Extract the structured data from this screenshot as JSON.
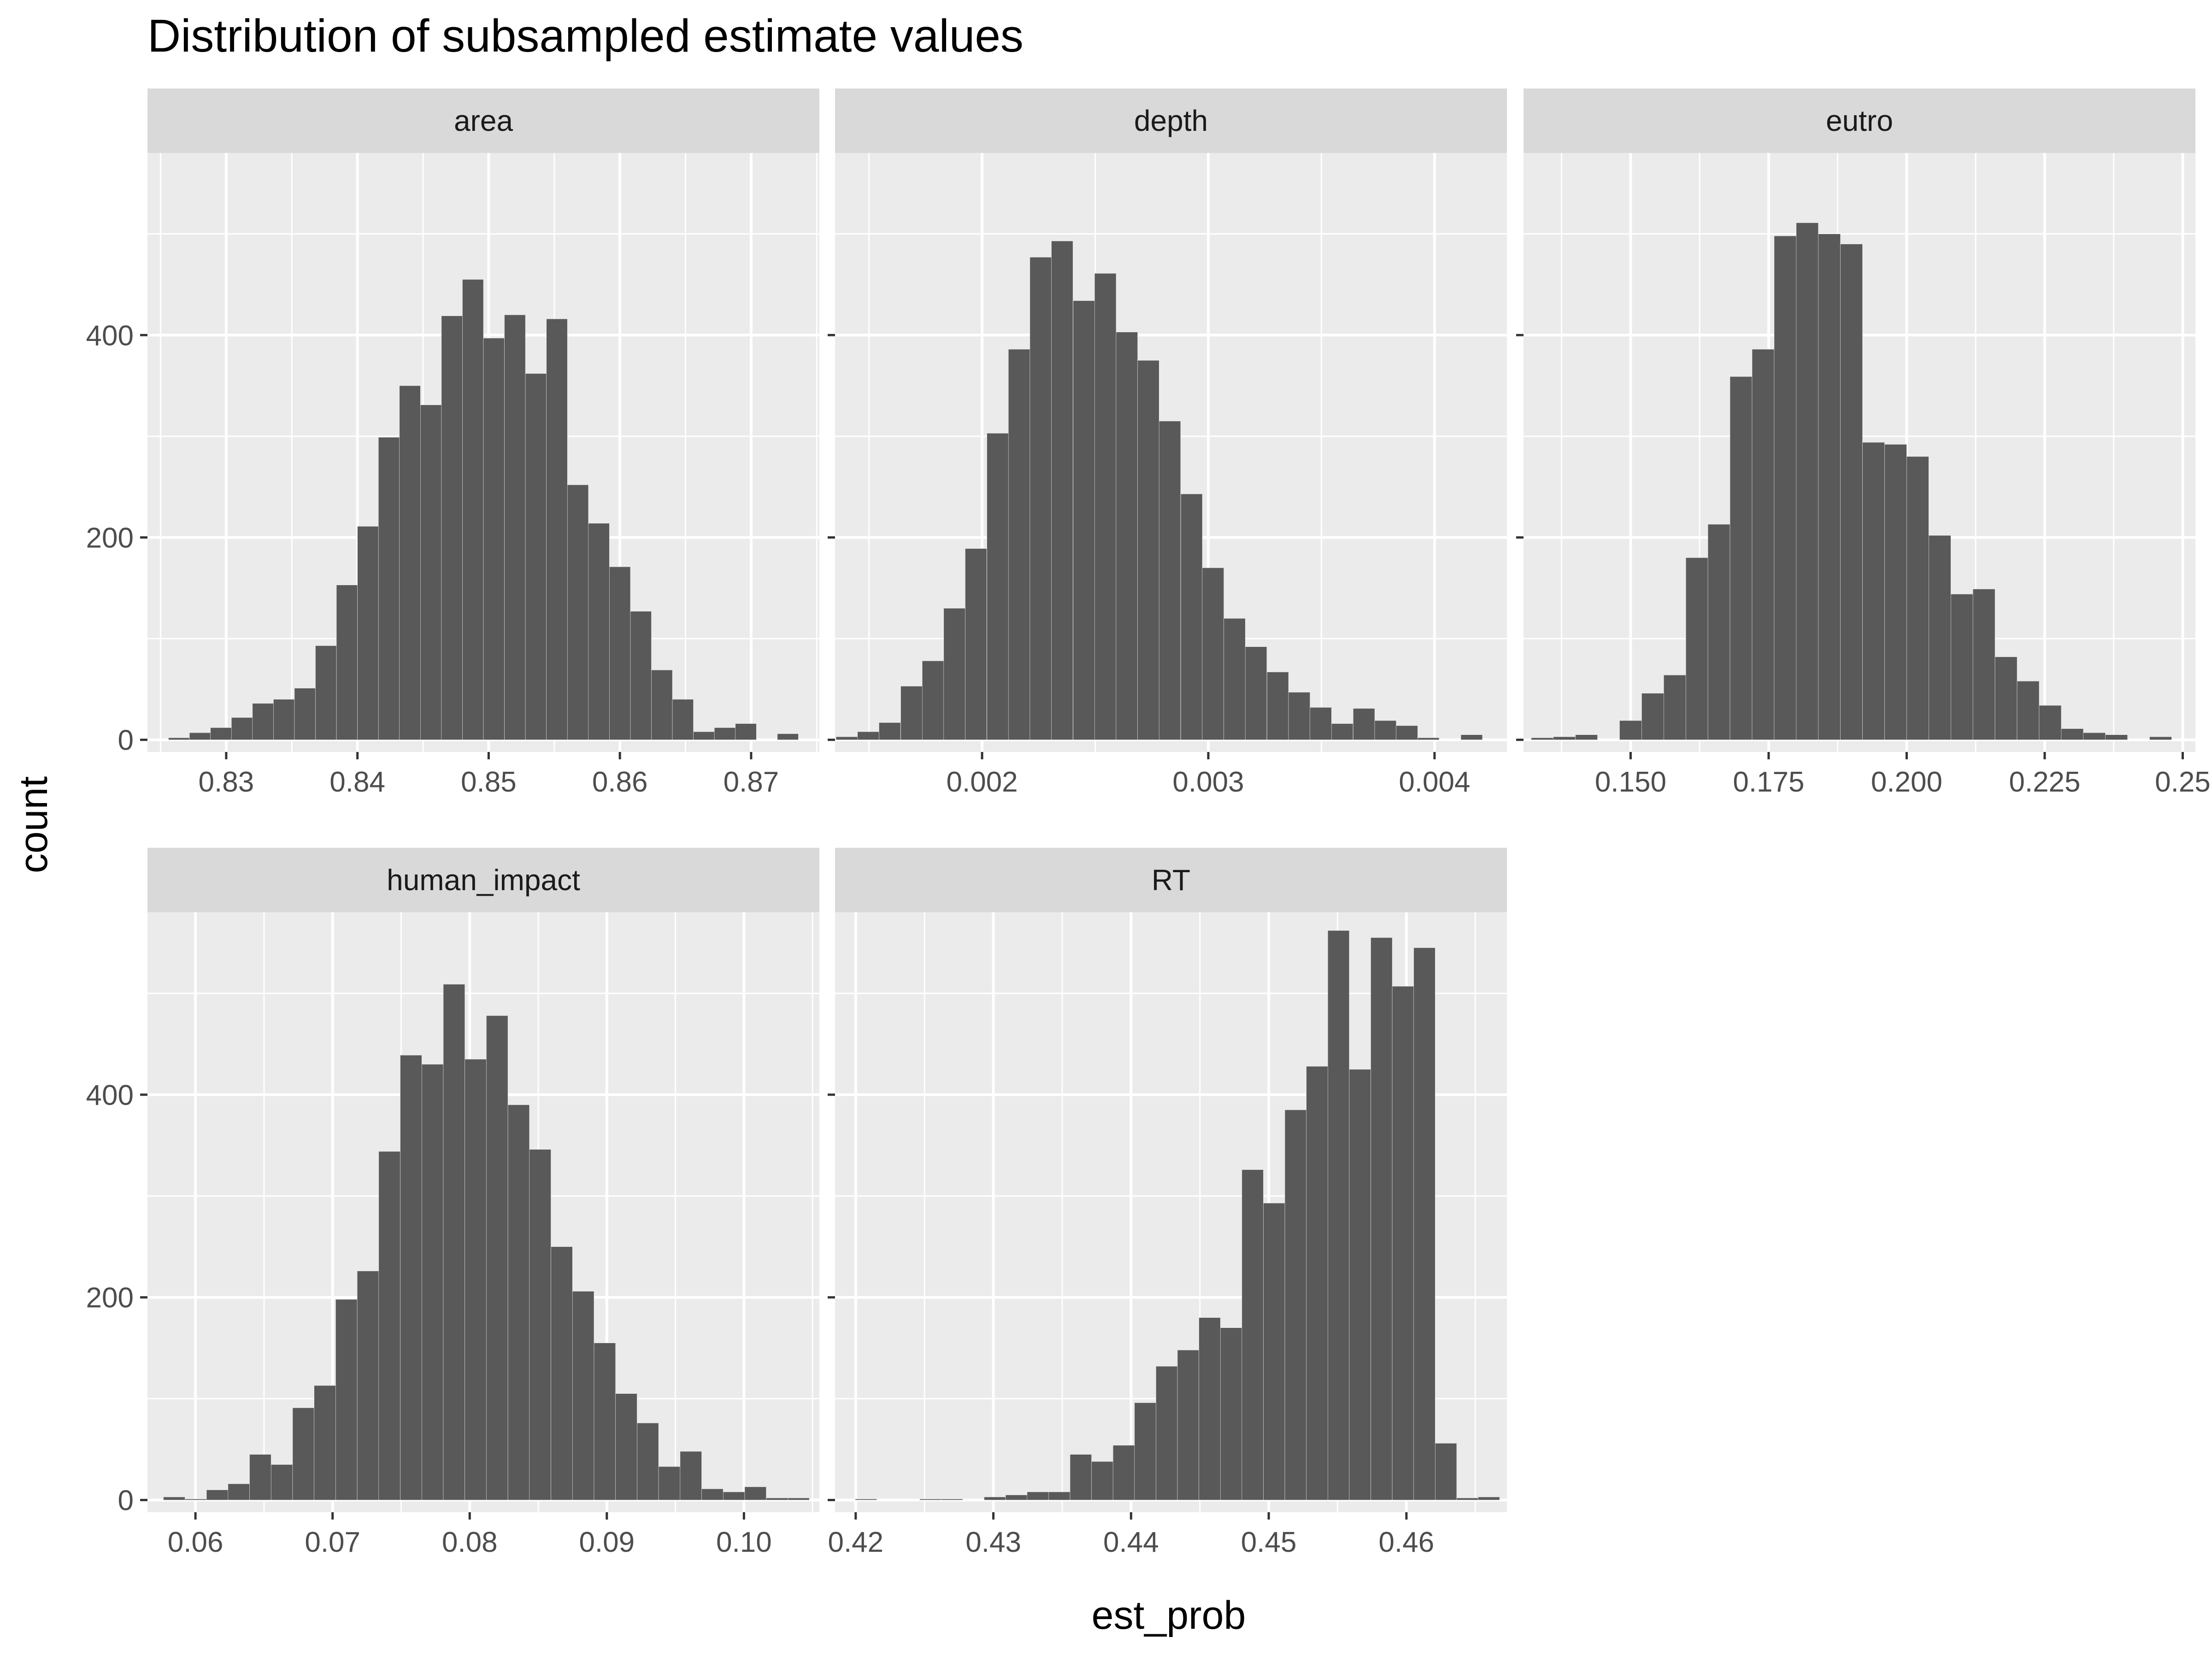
{
  "title": "Distribution of subsampled estimate values",
  "xlabel": "est_prob",
  "ylabel": "count",
  "colors": {
    "panel_bg": "#ebebeb",
    "strip_bg": "#d9d9d9",
    "grid": "#ffffff",
    "bar": "#595959",
    "text": "#000000",
    "tick_text": "#4d4d4d",
    "axis_tick": "#333333"
  },
  "y_axis": {
    "ylim": [
      -12,
      580
    ],
    "ticks": [
      0,
      200,
      400
    ],
    "tick_labels": [
      "0",
      "200",
      "400"
    ]
  },
  "chart_data": [
    {
      "type": "bar",
      "facet": "area",
      "xlim": [
        0.824,
        0.8752
      ],
      "x_ticks": [
        0.83,
        0.84,
        0.85,
        0.86,
        0.87
      ],
      "x_tick_labels": [
        "0.83",
        "0.84",
        "0.85",
        "0.86",
        "0.87"
      ],
      "bin_width": 0.0016,
      "bin_centers": [
        0.8264,
        0.828,
        0.8296,
        0.8312,
        0.8328,
        0.8344,
        0.836,
        0.8376,
        0.8392,
        0.8408,
        0.8424,
        0.844,
        0.8456,
        0.8472,
        0.8488,
        0.8504,
        0.852,
        0.8536,
        0.8552,
        0.8568,
        0.8584,
        0.86,
        0.8616,
        0.8632,
        0.8648,
        0.8664,
        0.868,
        0.8696,
        0.8712,
        0.8728
      ],
      "counts": [
        2,
        7,
        12,
        22,
        36,
        40,
        51,
        93,
        153,
        211,
        299,
        350,
        331,
        419,
        455,
        397,
        420,
        362,
        416,
        252,
        214,
        171,
        127,
        69,
        40,
        8,
        12,
        16,
        0,
        6
      ]
    },
    {
      "type": "bar",
      "facet": "depth",
      "xlim": [
        0.00135,
        0.00432
      ],
      "x_ticks": [
        0.002,
        0.003,
        0.004
      ],
      "x_tick_labels": [
        "0.002",
        "0.003",
        "0.004"
      ],
      "bin_width": 9.52e-05,
      "bin_centers": [
        0.001402,
        0.001497,
        0.001592,
        0.001688,
        0.001783,
        0.001878,
        0.001973,
        0.002069,
        0.002164,
        0.002259,
        0.002354,
        0.00245,
        0.002545,
        0.00264,
        0.002735,
        0.00283,
        0.002926,
        0.003021,
        0.003116,
        0.003211,
        0.003307,
        0.003402,
        0.003497,
        0.003592,
        0.003688,
        0.003783,
        0.003878,
        0.003973,
        0.004069,
        0.004164
      ],
      "counts": [
        3,
        8,
        17,
        53,
        78,
        130,
        189,
        303,
        386,
        477,
        493,
        434,
        461,
        403,
        375,
        315,
        243,
        170,
        120,
        92,
        67,
        47,
        32,
        16,
        31,
        19,
        14,
        2,
        0,
        5
      ]
    },
    {
      "type": "bar",
      "facet": "eutro",
      "xlim": [
        0.1306,
        0.2523
      ],
      "x_ticks": [
        0.15,
        0.175,
        0.2,
        0.225,
        0.25
      ],
      "x_tick_labels": [
        "0.150",
        "0.175",
        "0.200",
        "0.225",
        "0.25"
      ],
      "bin_width": 0.004,
      "bin_centers": [
        0.134,
        0.138,
        0.142,
        0.146,
        0.15,
        0.154,
        0.158,
        0.162,
        0.166,
        0.17,
        0.174,
        0.178,
        0.182,
        0.186,
        0.19,
        0.194,
        0.198,
        0.202,
        0.206,
        0.21,
        0.214,
        0.218,
        0.222,
        0.226,
        0.23,
        0.234,
        0.238,
        0.242,
        0.246
      ],
      "counts": [
        2,
        3,
        5,
        0,
        19,
        46,
        64,
        180,
        213,
        359,
        386,
        498,
        511,
        500,
        490,
        294,
        292,
        280,
        202,
        144,
        149,
        82,
        58,
        34,
        11,
        7,
        5,
        0,
        3
      ]
    },
    {
      "type": "bar",
      "facet": "human_impact",
      "xlim": [
        0.0565,
        0.1055
      ],
      "x_ticks": [
        0.06,
        0.07,
        0.08,
        0.09,
        0.1
      ],
      "x_tick_labels": [
        "0.06",
        "0.07",
        "0.08",
        "0.09",
        "0.10"
      ],
      "bin_width": 0.00157,
      "bin_centers": [
        0.05845,
        0.06002,
        0.06159,
        0.06316,
        0.06473,
        0.0663,
        0.06787,
        0.06944,
        0.07101,
        0.07258,
        0.07415,
        0.07572,
        0.07729,
        0.07886,
        0.08043,
        0.082,
        0.08357,
        0.08514,
        0.08671,
        0.08828,
        0.08985,
        0.09142,
        0.09299,
        0.09456,
        0.09613,
        0.0977,
        0.09927,
        0.10084,
        0.10241,
        0.10398
      ],
      "counts": [
        3,
        1,
        10,
        16,
        45,
        35,
        91,
        113,
        198,
        226,
        344,
        439,
        430,
        509,
        435,
        478,
        390,
        346,
        250,
        206,
        155,
        105,
        76,
        33,
        48,
        11,
        8,
        13,
        2,
        2
      ]
    },
    {
      "type": "bar",
      "facet": "RT",
      "xlim": [
        0.4185,
        0.4673
      ],
      "x_ticks": [
        0.42,
        0.43,
        0.44,
        0.45,
        0.46
      ],
      "x_tick_labels": [
        "0.42",
        "0.43",
        "0.44",
        "0.45",
        "0.46"
      ],
      "bin_width": 0.00156,
      "bin_centers": [
        0.42075,
        0.42231,
        0.42387,
        0.42543,
        0.42699,
        0.42855,
        0.43011,
        0.43167,
        0.43323,
        0.43479,
        0.43635,
        0.43791,
        0.43947,
        0.44103,
        0.44259,
        0.44415,
        0.44571,
        0.44727,
        0.44883,
        0.45039,
        0.45195,
        0.45351,
        0.45507,
        0.45663,
        0.45819,
        0.45975,
        0.46131,
        0.46287,
        0.46443,
        0.46599
      ],
      "counts": [
        1,
        0,
        0,
        1,
        1,
        0,
        3,
        5,
        8,
        8,
        45,
        38,
        54,
        96,
        132,
        148,
        180,
        170,
        326,
        293,
        385,
        428,
        562,
        425,
        555,
        507,
        545,
        56,
        2,
        3
      ]
    }
  ]
}
